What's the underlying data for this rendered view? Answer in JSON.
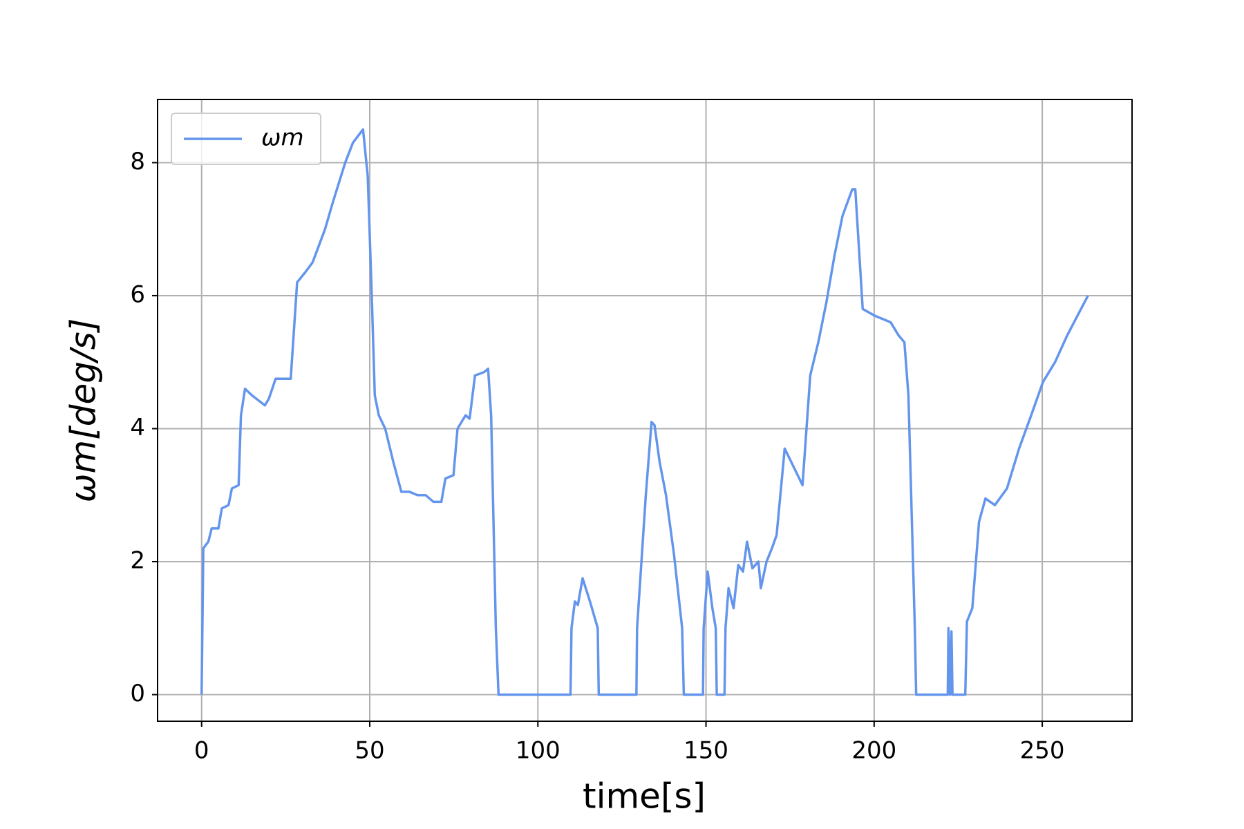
{
  "chart_data": {
    "type": "line",
    "xlabel": "time[s]",
    "ylabel": "ωm[deg/s]",
    "xlim": [
      -13.1,
      276.7
    ],
    "ylim": [
      -0.4,
      8.95
    ],
    "xticks": [
      0,
      50,
      100,
      150,
      200,
      250
    ],
    "yticks": [
      0,
      2,
      4,
      6,
      8
    ],
    "grid": true,
    "legend": "upper left",
    "x": [
      0,
      0.5,
      2,
      3,
      5,
      6,
      8,
      9,
      11,
      11.7,
      12.9,
      15,
      18.8,
      20,
      22,
      24,
      26.5,
      28.4,
      30.8,
      33,
      36.7,
      39,
      42.7,
      45,
      48,
      49.4,
      50.6,
      51.5,
      52.7,
      54.6,
      57,
      59.4,
      61.8,
      64.2,
      66.6,
      68.9,
      71.3,
      72.5,
      74.9,
      76.1,
      78.5,
      79.7,
      81.3,
      84,
      85.2,
      86.1,
      87.5,
      88.3,
      109.7,
      110,
      111,
      111.9,
      113.3,
      115.5,
      117.8,
      118.1,
      129.3,
      129.5,
      132.1,
      133.8,
      134.7,
      136.2,
      138.1,
      140.5,
      142.9,
      143.4,
      149.1,
      149.3,
      150.5,
      151.9,
      152.9,
      153.2,
      155.5,
      155.8,
      156.7,
      158.2,
      159.6,
      161,
      162.2,
      163.8,
      165.6,
      166.3,
      168,
      169.6,
      171,
      173.4,
      176.3,
      178.7,
      181,
      183.4,
      185.8,
      188.2,
      190.6,
      193.5,
      194.4,
      196.6,
      200.1,
      204.9,
      207.3,
      209,
      210.2,
      212.1,
      212.5,
      221.9,
      222.1,
      222.6,
      223,
      223.3,
      227.1,
      227.6,
      229.2,
      231.2,
      233.1,
      235.9,
      239.5,
      243.1,
      246.7,
      250.2,
      253.8,
      257.4,
      261,
      263.6
    ],
    "series": [
      {
        "name": "ωm",
        "color": "#6495ed",
        "values": [
          0,
          2.2,
          2.3,
          2.5,
          2.5,
          2.8,
          2.85,
          3.1,
          3.15,
          4.2,
          4.6,
          4.5,
          4.35,
          4.45,
          4.75,
          4.75,
          4.75,
          6.2,
          6.35,
          6.5,
          7.0,
          7.4,
          8.0,
          8.3,
          8.5,
          7.8,
          6.0,
          4.5,
          4.2,
          4.0,
          3.5,
          3.05,
          3.05,
          3.0,
          3.0,
          2.9,
          2.9,
          3.25,
          3.3,
          4.0,
          4.2,
          4.15,
          4.8,
          4.85,
          4.9,
          4.2,
          1.0,
          0,
          0,
          1.0,
          1.4,
          1.35,
          1.75,
          1.4,
          1.0,
          0,
          0,
          1.0,
          3.0,
          4.1,
          4.05,
          3.5,
          3.0,
          2.1,
          1.0,
          0,
          0,
          1.0,
          1.85,
          1.3,
          1.0,
          0,
          0,
          1.0,
          1.6,
          1.3,
          1.95,
          1.85,
          2.3,
          1.9,
          2.0,
          1.6,
          2.0,
          2.2,
          2.4,
          3.7,
          3.4,
          3.15,
          4.8,
          5.3,
          5.9,
          6.6,
          7.2,
          7.6,
          7.6,
          5.8,
          5.7,
          5.6,
          5.4,
          5.3,
          4.5,
          1.0,
          0,
          0,
          1.0,
          0,
          0.95,
          0,
          0,
          1.1,
          1.3,
          2.6,
          2.95,
          2.85,
          3.1,
          3.7,
          4.2,
          4.7,
          5.0,
          5.4,
          5.75,
          6.0
        ]
      }
    ]
  }
}
